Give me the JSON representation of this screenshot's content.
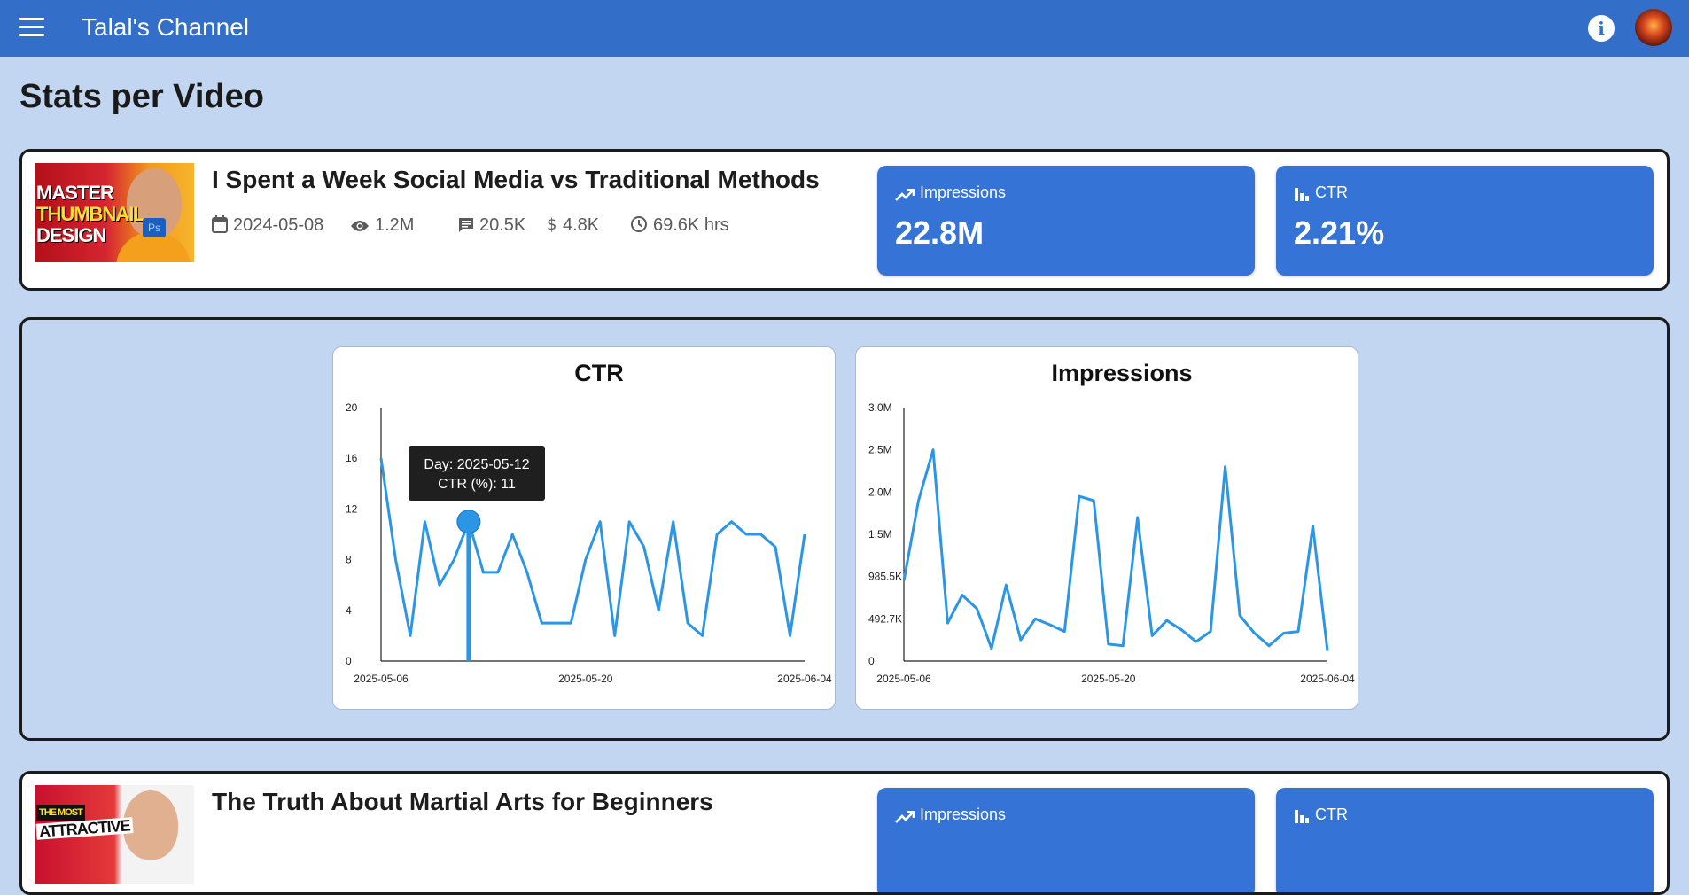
{
  "app": {
    "title": "Talal's Channel"
  },
  "page": {
    "title": "Stats per Video"
  },
  "videos": [
    {
      "title": "I Spent a Week Social Media vs Traditional Methods",
      "thumbnail_text": [
        "MASTER",
        "THUMBNAIL",
        "DESIGN"
      ],
      "thumbnail_badge": "Ps",
      "published": "2024-05-08",
      "views": "1.2M",
      "comments": "20.5K",
      "revenue": "4.8K",
      "watch_time": "69.6K hrs",
      "impressions_label": "Impressions",
      "impressions": "22.8M",
      "ctr_label": "CTR",
      "ctr": "2.21%"
    },
    {
      "title": "The Truth About Martial Arts for Beginners",
      "thumbnail_text": [
        "THE MOST",
        "ATTRACTIVE"
      ],
      "impressions_label": "Impressions",
      "ctr_label": "CTR"
    }
  ],
  "tooltip": {
    "line1": "Day: 2025-05-12",
    "line2": "CTR (%): 11"
  },
  "colors": {
    "appbar": "#336fc9",
    "stat_box": "#3574d6",
    "line": "#2b95e6",
    "background": "#c3d6f1"
  },
  "icons": [
    "menu-icon",
    "info-icon",
    "calendar-icon",
    "eye-icon",
    "comment-icon",
    "dollar-icon",
    "clock-icon",
    "trending-up-icon",
    "bar-chart-icon"
  ],
  "chart_data": [
    {
      "type": "line",
      "title": "CTR",
      "x_start": "2025-05-06",
      "x_end": "2025-06-04",
      "x_ticks": [
        "2025-05-06",
        "2025-05-20",
        "2025-06-04"
      ],
      "y_ticks": [
        "0",
        "4",
        "8",
        "12",
        "16",
        "20"
      ],
      "ylim": [
        0,
        20
      ],
      "grid": false,
      "highlight_x": "2025-05-12",
      "series": [
        {
          "values": [
            16,
            8,
            2,
            11,
            6,
            8,
            11,
            7,
            7,
            10,
            7,
            3,
            3,
            3,
            8,
            11,
            2,
            11,
            9,
            4,
            11,
            3,
            2,
            10,
            11,
            10,
            10,
            9,
            2,
            10
          ]
        }
      ]
    },
    {
      "type": "line",
      "title": "Impressions",
      "x_start": "2025-05-06",
      "x_end": "2025-06-04",
      "x_ticks": [
        "2025-05-06",
        "2025-05-20",
        "2025-06-04"
      ],
      "y_ticks": [
        "0",
        "492.7K",
        "985.5K",
        "1.5M",
        "2.0M",
        "2.5M",
        "3.0M"
      ],
      "ylim": [
        0,
        3000000
      ],
      "grid": false,
      "series": [
        {
          "values": [
            950000,
            1900000,
            2500000,
            450000,
            780000,
            620000,
            150000,
            900000,
            250000,
            500000,
            430000,
            350000,
            1950000,
            1900000,
            200000,
            180000,
            1700000,
            300000,
            480000,
            370000,
            230000,
            350000,
            2300000,
            540000,
            330000,
            180000,
            330000,
            350000,
            1600000,
            120000
          ]
        }
      ]
    }
  ]
}
